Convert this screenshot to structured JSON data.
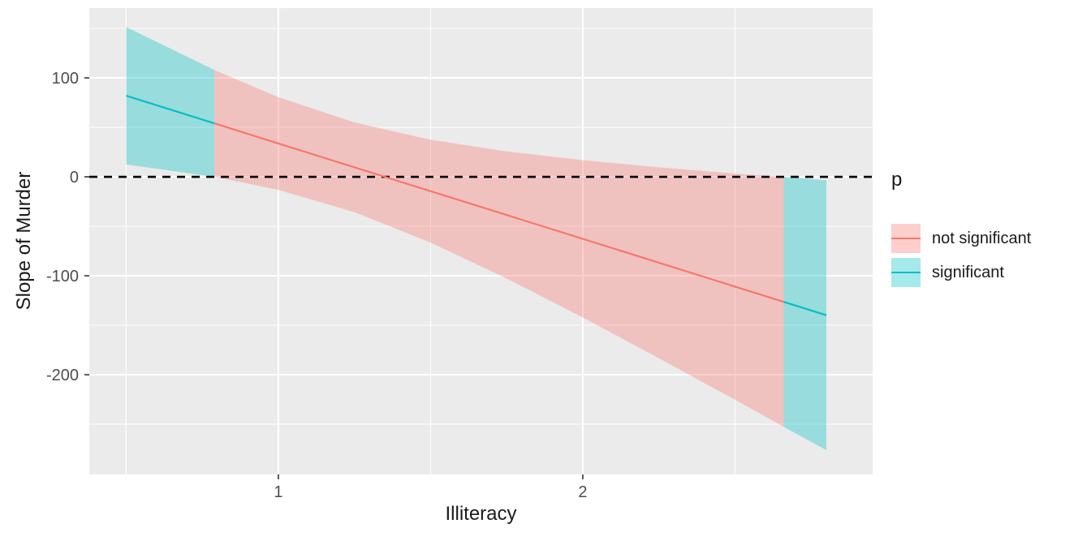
{
  "chart_data": {
    "type": "area",
    "title": "",
    "xlabel": "Illiteracy",
    "ylabel": "Slope of Murder",
    "panel_background": "#EBEBEB",
    "grid_color": "#FFFFFF",
    "tick_label_color": "#4D4D4D",
    "tick_mark_color": "#333333",
    "xlim": [
      0.379,
      2.952
    ],
    "ylim": [
      -300.8,
      170.5
    ],
    "x_ticks": [
      {
        "value": 1,
        "label": "1"
      },
      {
        "value": 2,
        "label": "2"
      }
    ],
    "y_ticks": [
      {
        "value": 100,
        "label": "100"
      },
      {
        "value": 0,
        "label": "0"
      },
      {
        "value": -100,
        "label": "-100"
      },
      {
        "value": -200,
        "label": "-200"
      }
    ],
    "x_minor_ticks": [
      0.5,
      1.5,
      2.5
    ],
    "y_minor_ticks": [
      150,
      50,
      -50,
      -150,
      -250
    ],
    "hline": {
      "y": 0,
      "style": "dashed",
      "color": "#000000"
    },
    "legend": {
      "title": "p",
      "position": "right",
      "entries": [
        {
          "label": "not significant",
          "color": "#F8766D",
          "fill": "rgba(248,118,109,0.35)"
        },
        {
          "label": "significant",
          "color": "#00BFC4",
          "fill": "rgba(0,191,196,0.35)"
        }
      ]
    },
    "regions": [
      {
        "p": "significant",
        "x0": 0.5,
        "x1": 0.79
      },
      {
        "p": "not significant",
        "x0": 0.79,
        "x1": 2.66
      },
      {
        "p": "significant",
        "x0": 2.66,
        "x1": 2.8
      }
    ],
    "series_x": [
      0.5,
      0.79,
      1.0,
      1.25,
      1.5,
      1.75,
      2.0,
      2.25,
      2.5,
      2.66,
      2.8
    ],
    "line": [
      82.0,
      54.0,
      33.7,
      9.6,
      -14.5,
      -38.6,
      -62.7,
      -86.8,
      -111.0,
      -126.4,
      -139.9
    ],
    "upper": [
      151.5,
      108.0,
      80.6,
      54.9,
      37.5,
      25.6,
      16.8,
      9.6,
      3.3,
      0.0,
      -3.5
    ],
    "lower": [
      12.5,
      0.0,
      -13.2,
      -35.7,
      -66.5,
      -102.8,
      -142.2,
      -183.4,
      -225.3,
      -252.8,
      -276.3
    ]
  }
}
